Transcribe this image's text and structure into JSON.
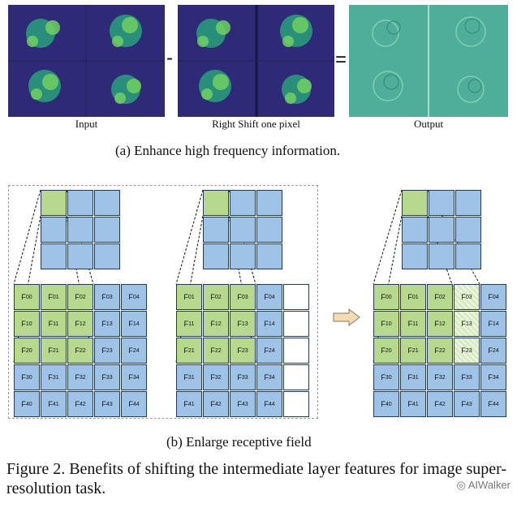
{
  "panel_a": {
    "captions": [
      "Input",
      "Right Shift one pixel",
      "Output"
    ],
    "minus": "-",
    "equals": "=",
    "subcaption": "(a)  Enhance high frequency information."
  },
  "panel_b": {
    "subcaption": "(b)  Enlarge receptive field",
    "grid1": [
      [
        "F00",
        "F01",
        "F02",
        "F03",
        "F04"
      ],
      [
        "F10",
        "F11",
        "F12",
        "F13",
        "F14"
      ],
      [
        "F20",
        "F21",
        "F22",
        "F23",
        "F24"
      ],
      [
        "F30",
        "F31",
        "F32",
        "F33",
        "F34"
      ],
      [
        "F40",
        "F41",
        "F42",
        "F43",
        "F44"
      ]
    ],
    "grid2": [
      [
        "F01",
        "F02",
        "F03",
        "F04",
        ""
      ],
      [
        "F11",
        "F12",
        "F13",
        "F14",
        ""
      ],
      [
        "F21",
        "F22",
        "F23",
        "F24",
        ""
      ],
      [
        "F31",
        "F32",
        "F33",
        "F34",
        ""
      ],
      [
        "F41",
        "F42",
        "F43",
        "F44",
        ""
      ]
    ],
    "grid3": [
      [
        "F00",
        "F01",
        "F02",
        "F03",
        "F04"
      ],
      [
        "F10",
        "F11",
        "F12",
        "F13",
        "F14"
      ],
      [
        "F20",
        "F21",
        "F22",
        "F23",
        "F24"
      ],
      [
        "F30",
        "F31",
        "F32",
        "F33",
        "F34"
      ],
      [
        "F40",
        "F41",
        "F42",
        "F43",
        "F44"
      ]
    ]
  },
  "figure_caption": "Figure 2. Benefits of shifting the intermediate layer features for image super-resolution task.",
  "watermark": "AIWalker",
  "colors": {
    "green": "#b6d98e",
    "blue": "#9fc3e7",
    "output_teal": "#4fae99"
  }
}
